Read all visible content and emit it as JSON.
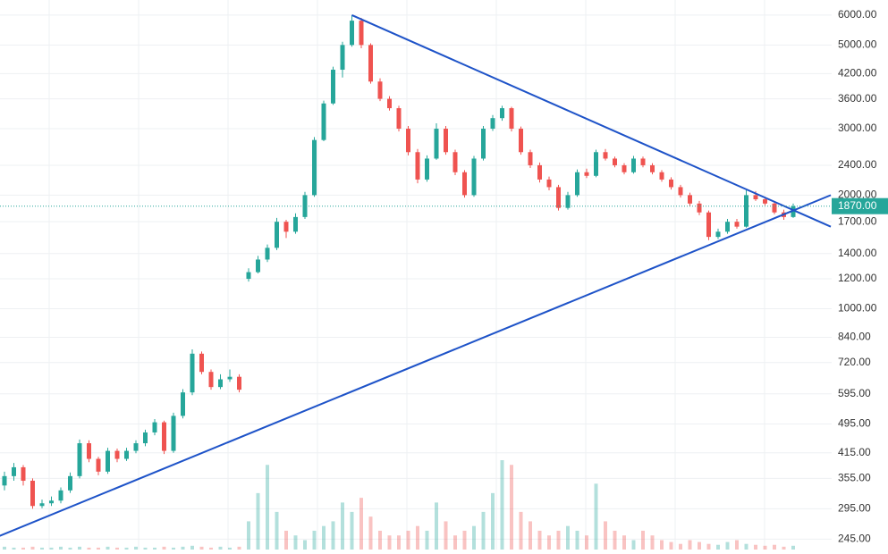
{
  "chart_data": {
    "type": "candlestick",
    "log_scale": true,
    "grid": true,
    "up_color": "#26a69a",
    "down_color": "#ef5350",
    "trendline_color": "#1e53c8",
    "ylim": [
      230,
      6580
    ],
    "yticks": [
      {
        "value": 6000,
        "label": "6000.00"
      },
      {
        "value": 5000,
        "label": "5000.00"
      },
      {
        "value": 4200,
        "label": "4200.00"
      },
      {
        "value": 3600,
        "label": "3600.00"
      },
      {
        "value": 3000,
        "label": "3000.00"
      },
      {
        "value": 2400,
        "label": "2400.00"
      },
      {
        "value": 2000,
        "label": "2000.00"
      },
      {
        "value": 1700,
        "label": "1700.00"
      },
      {
        "value": 1400,
        "label": "1400.00"
      },
      {
        "value": 1200,
        "label": "1200.00"
      },
      {
        "value": 1000,
        "label": "1000.00"
      },
      {
        "value": 840,
        "label": "840.00"
      },
      {
        "value": 720,
        "label": "720.00"
      },
      {
        "value": 595,
        "label": "595.00"
      },
      {
        "value": 495,
        "label": "495.00"
      },
      {
        "value": 415,
        "label": "415.00"
      },
      {
        "value": 355,
        "label": "355.00"
      },
      {
        "value": 295,
        "label": "295.00"
      },
      {
        "value": 245,
        "label": "245.00"
      }
    ],
    "last_price": {
      "value": 1870,
      "label": "1870.00"
    },
    "open": [
      340,
      360,
      380,
      350,
      300,
      305,
      310,
      330,
      360,
      440,
      400,
      370,
      420,
      400,
      420,
      440,
      470,
      500,
      420,
      520,
      600,
      760,
      680,
      620,
      650,
      660,
      1200,
      1250,
      1350,
      1450,
      1700,
      1600,
      1750,
      2000,
      2800,
      3500,
      4300,
      5000,
      5800,
      5000,
      4000,
      3600,
      3400,
      3000,
      2600,
      2200,
      2500,
      3000,
      2600,
      2300,
      2000,
      2500,
      3000,
      3200,
      3400,
      3000,
      2600,
      2400,
      2200,
      2100,
      1850,
      2000,
      2300,
      2250,
      2600,
      2500,
      2400,
      2300,
      2500,
      2400,
      2300,
      2200,
      2100,
      2000,
      1900,
      1800,
      1550,
      1600,
      1700,
      1650,
      2000,
      1950,
      1900,
      1800,
      1750
    ],
    "high": [
      370,
      390,
      385,
      355,
      312,
      318,
      336,
      368,
      450,
      448,
      405,
      428,
      426,
      428,
      448,
      478,
      510,
      505,
      530,
      612,
      780,
      770,
      690,
      670,
      690,
      670,
      1280,
      1380,
      1480,
      1740,
      1720,
      1790,
      2040,
      2850,
      3560,
      4380,
      5100,
      6000,
      5900,
      5050,
      4080,
      3660,
      3450,
      3050,
      2650,
      2550,
      3100,
      3050,
      2640,
      2330,
      2540,
      3050,
      3260,
      3450,
      3430,
      3040,
      2640,
      2440,
      2240,
      2130,
      2040,
      2340,
      2350,
      2640,
      2650,
      2530,
      2430,
      2540,
      2530,
      2430,
      2330,
      2230,
      2130,
      2030,
      1930,
      1820,
      1630,
      1730,
      1730,
      2060,
      2050,
      1980,
      1930,
      1830,
      1900
    ],
    "low": [
      330,
      350,
      340,
      295,
      296,
      300,
      305,
      325,
      355,
      392,
      362,
      365,
      392,
      395,
      414,
      432,
      462,
      412,
      415,
      512,
      590,
      670,
      610,
      612,
      640,
      600,
      1180,
      1240,
      1330,
      1430,
      1540,
      1580,
      1730,
      1980,
      2780,
      3470,
      4100,
      4950,
      4900,
      3950,
      3550,
      3350,
      2950,
      2550,
      2150,
      2170,
      2480,
      2560,
      2260,
      1970,
      1980,
      2470,
      2960,
      3150,
      2950,
      2560,
      2360,
      2160,
      2060,
      1820,
      1830,
      1980,
      2220,
      2230,
      2470,
      2370,
      2270,
      2280,
      2370,
      2270,
      2170,
      2070,
      1970,
      1870,
      1770,
      1520,
      1530,
      1580,
      1630,
      1640,
      1930,
      1880,
      1780,
      1720,
      1740
    ],
    "close": [
      360,
      380,
      350,
      300,
      305,
      310,
      330,
      360,
      440,
      400,
      370,
      420,
      400,
      420,
      440,
      470,
      500,
      420,
      520,
      600,
      760,
      680,
      620,
      650,
      660,
      610,
      1250,
      1350,
      1450,
      1700,
      1600,
      1750,
      2000,
      2800,
      3500,
      4300,
      5000,
      5800,
      5000,
      4000,
      3600,
      3400,
      3000,
      2600,
      2200,
      2500,
      3000,
      2600,
      2300,
      2000,
      2500,
      3000,
      3200,
      3400,
      3000,
      2600,
      2400,
      2200,
      2100,
      1850,
      2000,
      2300,
      2250,
      2600,
      2500,
      2400,
      2300,
      2500,
      2400,
      2300,
      2200,
      2100,
      2000,
      1900,
      1800,
      1550,
      1600,
      1700,
      1650,
      2000,
      1950,
      1900,
      1800,
      1750,
      1870
    ],
    "volume": [
      3,
      2,
      2,
      3,
      2,
      2,
      3,
      2,
      3,
      2,
      2,
      3,
      2,
      2,
      3,
      2,
      2,
      3,
      2,
      3,
      4,
      3,
      2,
      3,
      2,
      3,
      30,
      60,
      90,
      40,
      20,
      15,
      10,
      20,
      25,
      30,
      50,
      40,
      55,
      35,
      20,
      15,
      15,
      20,
      25,
      20,
      50,
      30,
      15,
      20,
      25,
      40,
      60,
      95,
      90,
      40,
      30,
      20,
      15,
      20,
      25,
      20,
      15,
      70,
      30,
      20,
      15,
      10,
      20,
      15,
      10,
      8,
      6,
      10,
      8,
      6,
      5,
      8,
      10,
      6,
      5,
      4,
      5,
      3,
      4
    ],
    "trendlines": [
      {
        "from": [
          37,
          6000
        ],
        "to": [
          88,
          1650
        ]
      },
      {
        "from": [
          -0.5,
          250
        ],
        "to": [
          88,
          2000
        ]
      }
    ]
  }
}
